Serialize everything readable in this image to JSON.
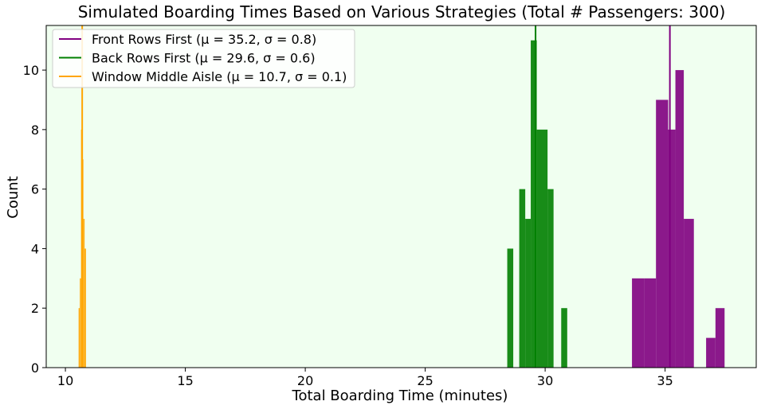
{
  "chart_data": {
    "type": "bar",
    "title": "Simulated Boarding Times Based on Various Strategies (Total # Passengers: 300)",
    "xlabel": "Total Boarding Time (minutes)",
    "ylabel": "Count",
    "xlim": [
      9.2,
      38.8
    ],
    "ylim": [
      0,
      11.5
    ],
    "xticks": [
      10,
      15,
      20,
      25,
      30,
      35
    ],
    "yticks": [
      0,
      2,
      4,
      6,
      8,
      10
    ],
    "grid": false,
    "legend_position": "top-left",
    "plot_background": "#f0fff0",
    "series": [
      {
        "name": "Front Rows First (μ = 35.2, σ = 0.8)",
        "color": "#800080",
        "mean": 35.2,
        "bins": [
          {
            "start": 33.62,
            "end": 34.12,
            "count": 3
          },
          {
            "start": 34.12,
            "end": 34.62,
            "count": 3
          },
          {
            "start": 34.62,
            "end": 35.13,
            "count": 9
          },
          {
            "start": 35.13,
            "end": 35.43,
            "count": 8
          },
          {
            "start": 35.43,
            "end": 35.78,
            "count": 10
          },
          {
            "start": 35.78,
            "end": 36.2,
            "count": 5
          },
          {
            "start": 36.71,
            "end": 37.1,
            "count": 1
          },
          {
            "start": 37.1,
            "end": 37.48,
            "count": 2
          }
        ]
      },
      {
        "name": "Back Rows First (μ = 29.6, σ = 0.6)",
        "color": "#008000",
        "mean": 29.6,
        "bins": [
          {
            "start": 28.42,
            "end": 28.67,
            "count": 4
          },
          {
            "start": 28.92,
            "end": 29.17,
            "count": 6
          },
          {
            "start": 29.17,
            "end": 29.4,
            "count": 5
          },
          {
            "start": 29.4,
            "end": 29.65,
            "count": 11
          },
          {
            "start": 29.65,
            "end": 30.1,
            "count": 8
          },
          {
            "start": 30.1,
            "end": 30.35,
            "count": 6
          },
          {
            "start": 30.67,
            "end": 30.92,
            "count": 2
          }
        ]
      },
      {
        "name": "Window Middle Aisle (μ = 10.7, σ = 0.1)",
        "color": "#ffa500",
        "mean": 10.7,
        "bins": [
          {
            "start": 10.55,
            "end": 10.6,
            "count": 2
          },
          {
            "start": 10.6,
            "end": 10.65,
            "count": 3
          },
          {
            "start": 10.65,
            "end": 10.7,
            "count": 8
          },
          {
            "start": 10.7,
            "end": 10.75,
            "count": 7
          },
          {
            "start": 10.75,
            "end": 10.8,
            "count": 5
          },
          {
            "start": 10.8,
            "end": 10.86,
            "count": 4
          }
        ]
      }
    ]
  }
}
